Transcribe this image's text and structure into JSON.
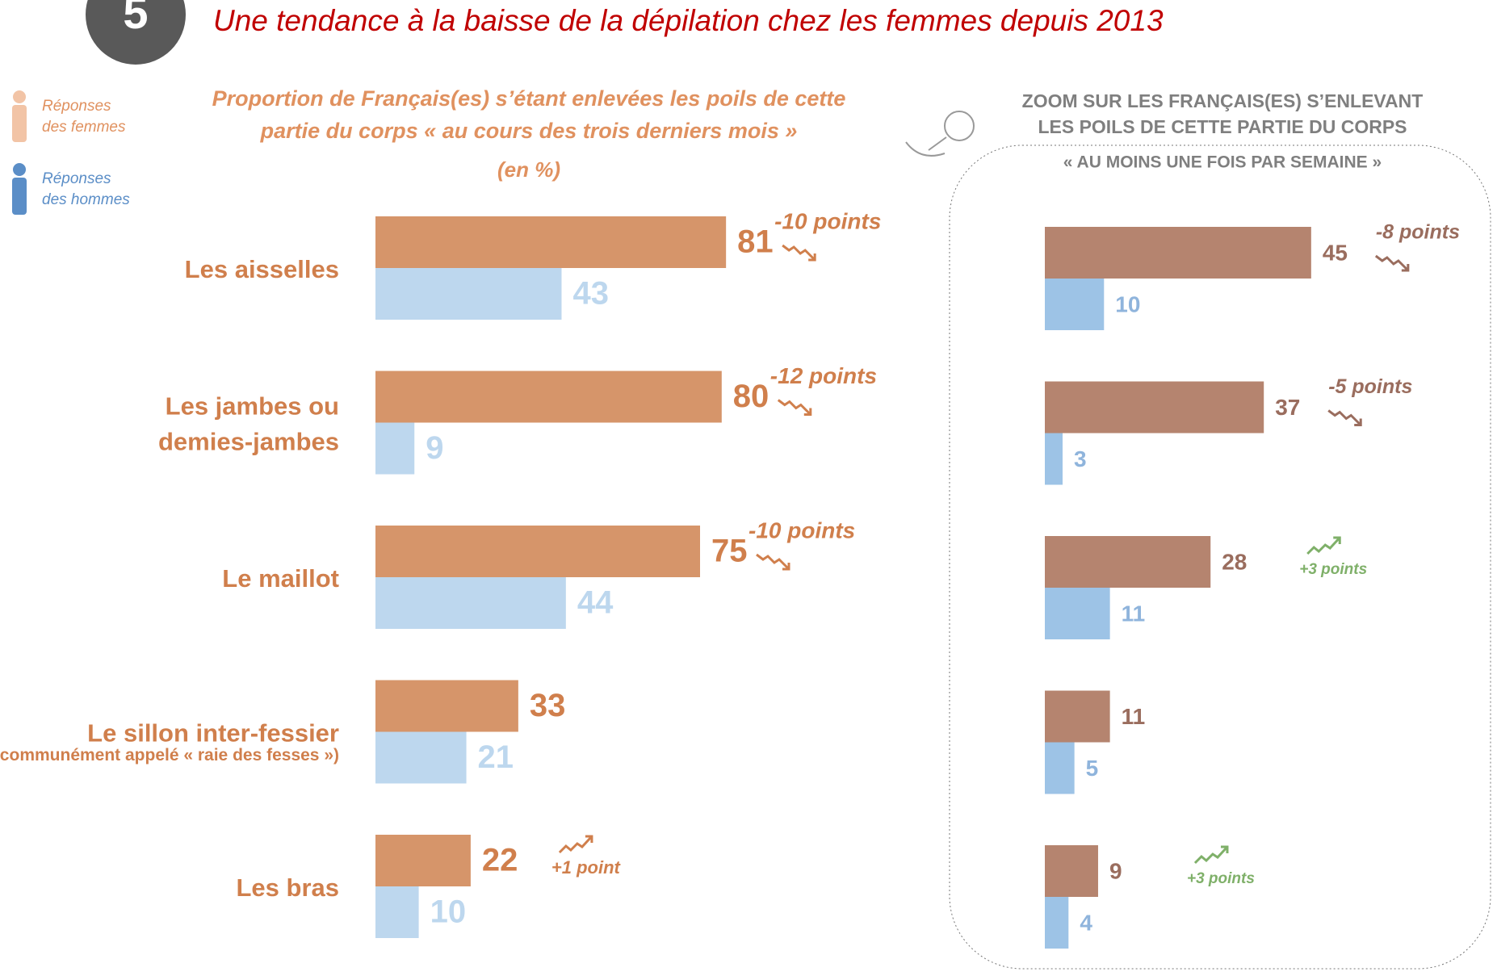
{
  "header": {
    "badge": "5",
    "title": "Une tendance à la baisse de la dépilation chez les femmes depuis 2013"
  },
  "chart_data": [
    {
      "type": "bar",
      "orientation": "horizontal",
      "title": "Proportion de Français(es) s’étant enlevées les poils de cette partie du corps « au cours des trois derniers mois »",
      "subtitle": "(en %)",
      "categories": [
        "Les aisselles",
        "Les jambes ou\ndemies-jambes",
        "Le maillot",
        "Le sillon inter-fessier",
        "Les bras"
      ],
      "category_notes": [
        null,
        null,
        null,
        "(communément appelé « raie des fesses »)",
        null
      ],
      "series": [
        {
          "name": "Réponses des femmes",
          "color": "#d6956a",
          "label_color": "#d07f4c",
          "values": [
            81,
            80,
            75,
            33,
            22
          ]
        },
        {
          "name": "Réponses des hommes",
          "color": "#bdd7ee",
          "label_color": "#bdd7ee",
          "values": [
            43,
            9,
            44,
            21,
            10
          ]
        }
      ],
      "annotations": [
        "-10 points",
        "-12 points",
        "-10 points",
        null,
        "+1 point"
      ],
      "annotation_colors": [
        "#d07f4c",
        "#d07f4c",
        "#d07f4c",
        null,
        "#d07f4c"
      ],
      "legend": "top-left"
    },
    {
      "type": "bar",
      "orientation": "horizontal",
      "title": "ZOOM SUR LES FRANÇAIS(ES) S’ENLEVANT LES POILS DE CETTE PARTIE DU CORPS",
      "subtitle": "« AU MOINS UNE FOIS PAR SEMAINE »",
      "series": [
        {
          "name": "Femmes",
          "color": "#b5846f",
          "label_color": "#9a6d5e",
          "values": [
            45,
            37,
            28,
            11,
            9
          ]
        },
        {
          "name": "Hommes",
          "color": "#9dc3e6",
          "label_color": "#8fb4dc",
          "values": [
            10,
            3,
            11,
            5,
            4
          ]
        }
      ],
      "annotations": [
        "-8 points",
        "-5 points",
        "+3 points",
        null,
        "+3 points"
      ],
      "annotation_colors": [
        "#9a6d5e",
        "#9a6d5e",
        "#7fb069",
        null,
        "#7fb069"
      ]
    }
  ]
}
